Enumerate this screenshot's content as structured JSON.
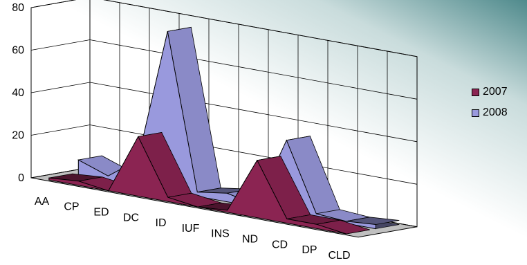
{
  "chart_data": {
    "type": "area",
    "title": "",
    "xlabel": "",
    "ylabel": "",
    "categories": [
      "AA",
      "CP",
      "ED",
      "DC",
      "ID",
      "IUF",
      "INS",
      "ND",
      "CD",
      "DP",
      "CLD"
    ],
    "series": [
      {
        "name": "2007",
        "values": [
          1,
          2,
          0,
          28,
          2,
          0,
          1,
          27,
          2,
          2,
          0
        ],
        "color": "#8b2452"
      },
      {
        "name": "2008",
        "values": [
          7,
          2,
          12,
          75,
          2,
          4,
          1,
          34,
          2,
          1,
          2
        ],
        "color": "#9999dd"
      }
    ],
    "ylim": [
      0,
      80
    ],
    "yticks": [
      0,
      20,
      40,
      60,
      80
    ],
    "grid": true,
    "legend_position": "right",
    "three_d": true
  },
  "legend": {
    "items": [
      {
        "label": "2007",
        "color": "#8b2452"
      },
      {
        "label": "2008",
        "color": "#9999dd"
      }
    ]
  }
}
